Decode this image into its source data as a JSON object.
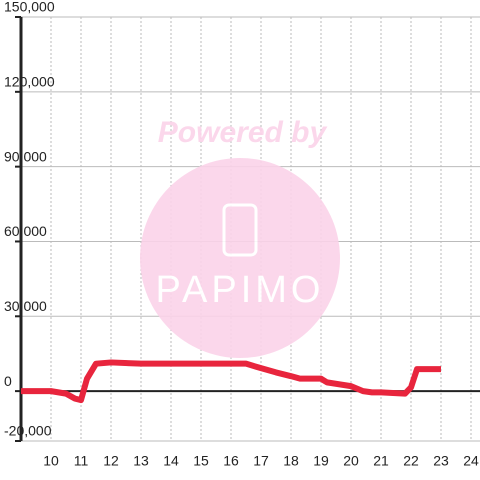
{
  "chart_data": {
    "type": "line",
    "watermark": {
      "title": "Powered by",
      "brand": "PAPIMO"
    },
    "x": [
      9,
      10,
      10.5,
      10.8,
      11,
      11.2,
      11.5,
      12,
      13,
      14,
      15,
      16,
      16.5,
      17,
      17.5,
      18,
      18.3,
      19,
      19.2,
      20,
      20.4,
      20.7,
      21,
      21.8,
      22,
      22.2,
      23
    ],
    "series": [
      {
        "color": "#e8253d",
        "values": [
          0,
          0,
          -1000,
          -3000,
          -3600,
          5000,
          11000,
          11500,
          11000,
          11000,
          11000,
          11000,
          11000,
          9200,
          7500,
          6000,
          5000,
          5000,
          3500,
          2000,
          0,
          -500,
          -500,
          -1000,
          1500,
          8800,
          8800
        ]
      }
    ],
    "xlim": [
      9,
      24.3
    ],
    "xticks": [
      10,
      11,
      12,
      13,
      14,
      15,
      16,
      17,
      18,
      19,
      20,
      21,
      22,
      23,
      24
    ],
    "ylim": [
      -20000,
      150000
    ],
    "yticks": [
      {
        "value": -20000,
        "label": "-20,000"
      },
      0,
      {
        "value": 30000,
        "label": "30,000"
      },
      {
        "value": 60000,
        "label": "60,000"
      },
      {
        "value": 90000,
        "label": "90,000"
      },
      {
        "value": 120000,
        "label": "120,000"
      },
      {
        "value": 150000,
        "label": "150,000"
      }
    ],
    "grid": true
  }
}
